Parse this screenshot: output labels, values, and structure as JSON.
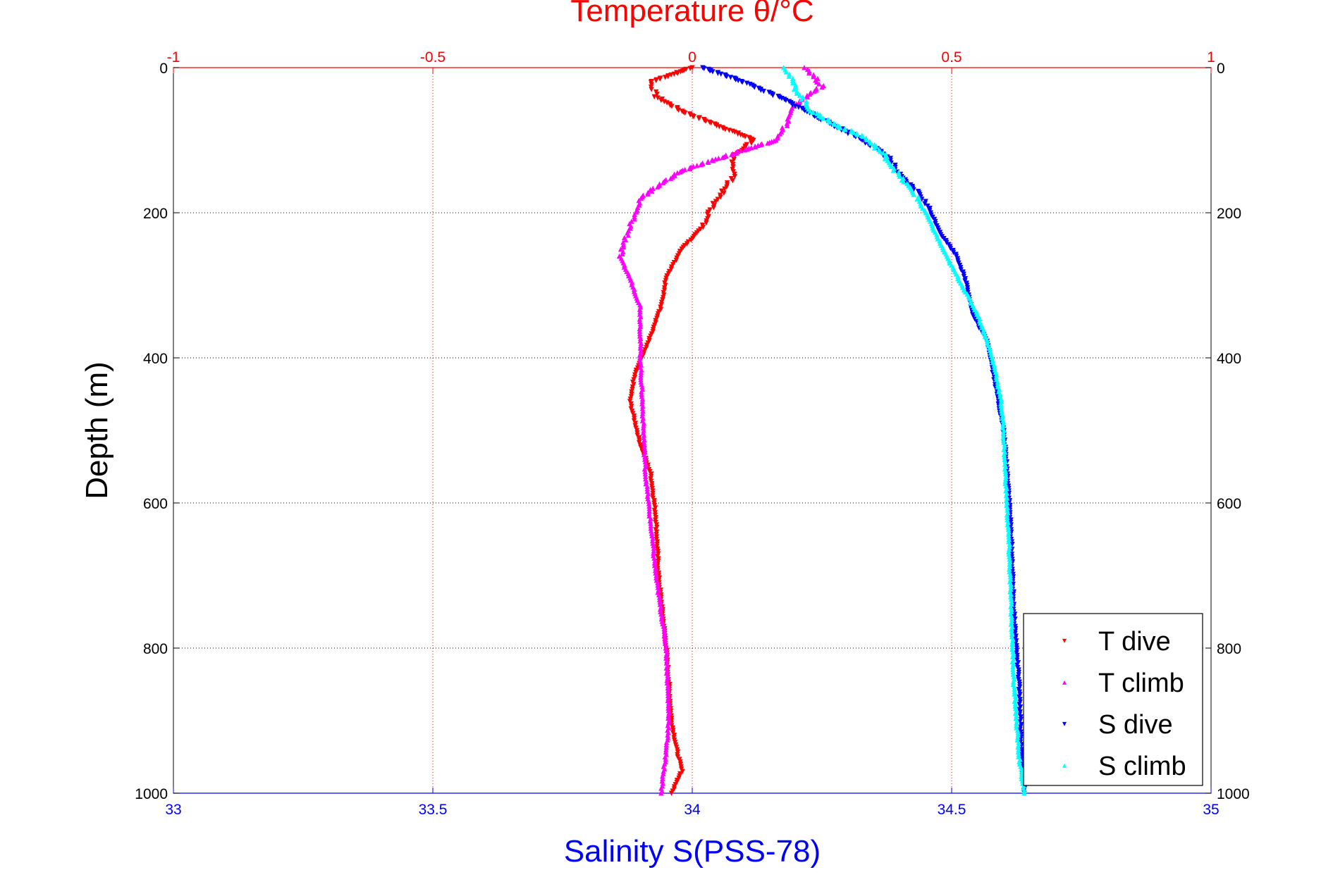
{
  "colors": {
    "t_dive": "#ff0000",
    "t_climb": "#ff00ff",
    "s_dive": "#0000ff",
    "s_climb": "#00ffff",
    "temp_axis": "#ff0000",
    "sal_axis": "#0000ff",
    "depth_axis": "#000000"
  },
  "chart_data": {
    "type": "scatter",
    "title": "Temperature θ/°C",
    "xlabel": "Salinity S(PSS-78)",
    "ylabel": "Depth (m)",
    "grid": true,
    "legend_position": "bottom-right",
    "y_axis": {
      "label": "Depth (m)",
      "lim": [
        1000,
        0
      ],
      "reversed": true,
      "ticks": [
        "0",
        "200",
        "400",
        "600",
        "800",
        "1000"
      ],
      "tick_values": [
        0,
        200,
        400,
        600,
        800,
        1000
      ]
    },
    "top_x_axis": {
      "label": "Temperature θ/°C",
      "lim": [
        -1,
        1
      ],
      "ticks": [
        "-1",
        "-0.5",
        "0",
        "0.5",
        "1"
      ],
      "tick_values": [
        -1,
        -0.5,
        0,
        0.5,
        1
      ]
    },
    "bottom_x_axis": {
      "label": "Salinity S(PSS-78)",
      "lim": [
        33,
        35
      ],
      "ticks": [
        "33",
        "33.5",
        "34",
        "34.5",
        "35"
      ],
      "tick_values": [
        33,
        33.5,
        34,
        34.5,
        35
      ]
    },
    "series": [
      {
        "name": "T dive",
        "axis": "temperature",
        "marker": "triangle-down",
        "color": "#ff0000",
        "points": [
          [
            0.0,
            0
          ],
          [
            -0.08,
            20
          ],
          [
            -0.07,
            40
          ],
          [
            -0.02,
            60
          ],
          [
            0.05,
            80
          ],
          [
            0.12,
            100
          ],
          [
            0.08,
            120
          ],
          [
            0.08,
            150
          ],
          [
            0.04,
            190
          ],
          [
            0.02,
            220
          ],
          [
            -0.02,
            250
          ],
          [
            -0.05,
            290
          ],
          [
            -0.06,
            330
          ],
          [
            -0.08,
            370
          ],
          [
            -0.11,
            420
          ],
          [
            -0.12,
            460
          ],
          [
            -0.1,
            520
          ],
          [
            -0.08,
            560
          ],
          [
            -0.07,
            620
          ],
          [
            -0.065,
            700
          ],
          [
            -0.05,
            800
          ],
          [
            -0.04,
            900
          ],
          [
            -0.03,
            940
          ],
          [
            -0.02,
            970
          ],
          [
            -0.04,
            1000
          ]
        ]
      },
      {
        "name": "T climb",
        "axis": "temperature",
        "marker": "triangle-up",
        "color": "#ff00ff",
        "points": [
          [
            0.22,
            0
          ],
          [
            0.25,
            25
          ],
          [
            0.2,
            50
          ],
          [
            0.18,
            80
          ],
          [
            0.16,
            100
          ],
          [
            0.05,
            125
          ],
          [
            -0.03,
            145
          ],
          [
            -0.1,
            180
          ],
          [
            -0.14,
            260
          ],
          [
            -0.12,
            290
          ],
          [
            -0.1,
            330
          ],
          [
            -0.1,
            400
          ],
          [
            -0.095,
            480
          ],
          [
            -0.09,
            560
          ],
          [
            -0.07,
            700
          ],
          [
            -0.05,
            800
          ],
          [
            -0.045,
            900
          ],
          [
            -0.05,
            940
          ],
          [
            -0.06,
            1000
          ]
        ]
      },
      {
        "name": "S dive",
        "axis": "salinity",
        "marker": "triangle-down",
        "color": "#0000ff",
        "points": [
          [
            34.02,
            0
          ],
          [
            34.1,
            20
          ],
          [
            34.18,
            45
          ],
          [
            34.26,
            75
          ],
          [
            34.33,
            100
          ],
          [
            34.38,
            125
          ],
          [
            34.4,
            150
          ],
          [
            34.44,
            175
          ],
          [
            34.46,
            200
          ],
          [
            34.48,
            230
          ],
          [
            34.51,
            260
          ],
          [
            34.53,
            300
          ],
          [
            34.54,
            340
          ],
          [
            34.57,
            380
          ],
          [
            34.58,
            420
          ],
          [
            34.59,
            460
          ],
          [
            34.6,
            500
          ],
          [
            34.61,
            580
          ],
          [
            34.615,
            650
          ],
          [
            34.62,
            750
          ],
          [
            34.63,
            850
          ],
          [
            34.635,
            950
          ],
          [
            34.64,
            1000
          ]
        ]
      },
      {
        "name": "S climb",
        "axis": "salinity",
        "marker": "triangle-up",
        "color": "#00ffff",
        "points": [
          [
            34.18,
            0
          ],
          [
            34.2,
            30
          ],
          [
            34.23,
            60
          ],
          [
            34.28,
            80
          ],
          [
            34.33,
            95
          ],
          [
            34.37,
            120
          ],
          [
            34.4,
            150
          ],
          [
            34.43,
            175
          ],
          [
            34.45,
            200
          ],
          [
            34.47,
            230
          ],
          [
            34.49,
            260
          ],
          [
            34.52,
            300
          ],
          [
            34.55,
            340
          ],
          [
            34.57,
            380
          ],
          [
            34.585,
            420
          ],
          [
            34.595,
            460
          ],
          [
            34.6,
            500
          ],
          [
            34.605,
            580
          ],
          [
            34.61,
            650
          ],
          [
            34.615,
            750
          ],
          [
            34.62,
            850
          ],
          [
            34.63,
            950
          ],
          [
            34.64,
            1000
          ]
        ]
      }
    ]
  }
}
